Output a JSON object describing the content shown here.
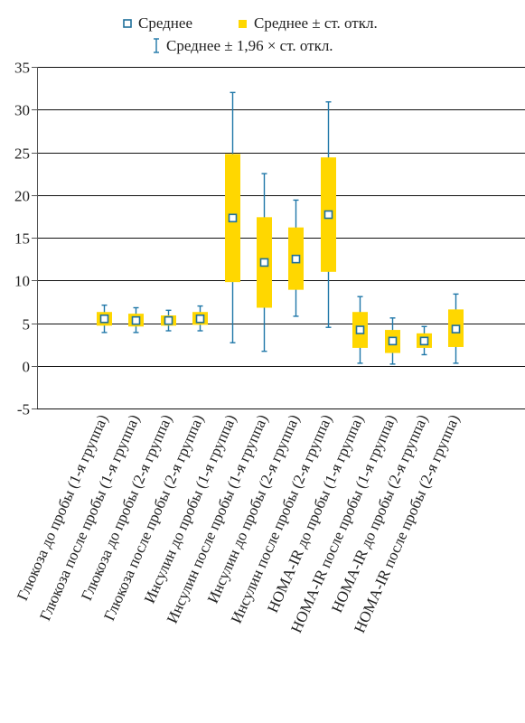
{
  "chart_data": {
    "type": "box",
    "categories": [
      "Глюкоза до пробы (1-я группа)",
      "Глюкоза после пробы (1-я группа)",
      "Глюкоза до пробы (2-я группа)",
      "Глюкоза после пробы (2-я группа)",
      "Инсулин до пробы (1-я группа)",
      "Инсулин после пробы (1-я группа)",
      "Инсулин до пробы (2-я группа)",
      "Инсулин после пробы (2-я группа)",
      "HOMA-IR до пробы (1-я группа)",
      "HOMA-IR после пробы (1-я группа)",
      "HOMA-IR до пробы (2-я группа)",
      "HOMA-IR после пробы (2-я группа)"
    ],
    "series": [
      {
        "name": "Среднее",
        "values": [
          5.5,
          5.3,
          5.3,
          5.5,
          17.3,
          12.1,
          12.5,
          17.7,
          4.2,
          2.9,
          2.9,
          4.3
        ]
      },
      {
        "name": "Среднее ± ст. откл.",
        "low": [
          4.7,
          4.6,
          4.7,
          4.8,
          9.8,
          6.8,
          8.9,
          11.0,
          2.1,
          1.5,
          2.1,
          2.2
        ],
        "high": [
          6.3,
          6.1,
          5.9,
          6.3,
          24.8,
          17.4,
          16.2,
          24.4,
          6.3,
          4.2,
          3.8,
          6.6
        ]
      },
      {
        "name": "Среднее ± 1,96 × ст. откл.",
        "low": [
          3.9,
          3.9,
          4.1,
          4.1,
          2.7,
          1.7,
          5.8,
          4.5,
          0.3,
          0.2,
          1.3,
          0.3
        ],
        "high": [
          7.1,
          6.8,
          6.5,
          7.0,
          32.0,
          22.5,
          19.4,
          30.9,
          8.1,
          5.6,
          4.6,
          8.4
        ]
      }
    ],
    "ylim": [
      -5,
      35
    ],
    "yticks": [
      "35",
      "30",
      "25",
      "20",
      "15",
      "10",
      "5",
      "0",
      "-5"
    ],
    "grid": true,
    "legend_position": "top"
  },
  "legend": {
    "mean": "Среднее",
    "sd": "Среднее ± ст. откл.",
    "ci": "Среднее ± 1,96 × ст. откл."
  },
  "colors": {
    "box": "#ffd700",
    "whisker": "#1f77a8",
    "marker_stroke": "#1f6f9a"
  }
}
